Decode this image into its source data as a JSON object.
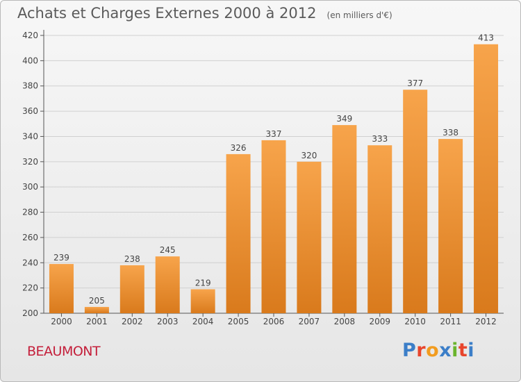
{
  "header": {
    "title": "Achats et Charges Externes 2000 à 2012",
    "unit": "(en milliers d'€)"
  },
  "footer": {
    "city": "BEAUMONT",
    "logo": "Proxiti"
  },
  "colors": {
    "bar_top": "#f7a44b",
    "bar_bottom": "#d97a1c",
    "grid": "#d0d0d0",
    "axis": "#555555",
    "city": "#c41e3a",
    "logo": [
      "#3b7ec8",
      "#e8452c",
      "#f29c1f",
      "#3b7ec8",
      "#6ab42d",
      "#e8452c",
      "#3b7ec8"
    ]
  },
  "chart_data": {
    "type": "bar",
    "title": "Achats et Charges Externes 2000 à 2012",
    "subtitle": "(en milliers d'€)",
    "categories": [
      "2000",
      "2001",
      "2002",
      "2003",
      "2004",
      "2005",
      "2006",
      "2007",
      "2008",
      "2009",
      "2010",
      "2011",
      "2012"
    ],
    "values": [
      239,
      205,
      238,
      245,
      219,
      326,
      337,
      320,
      349,
      333,
      377,
      338,
      413
    ],
    "ylim": [
      200,
      420
    ],
    "yticks": [
      200,
      220,
      240,
      260,
      280,
      300,
      320,
      340,
      360,
      380,
      400,
      420
    ],
    "grid": true,
    "legend": "none"
  }
}
